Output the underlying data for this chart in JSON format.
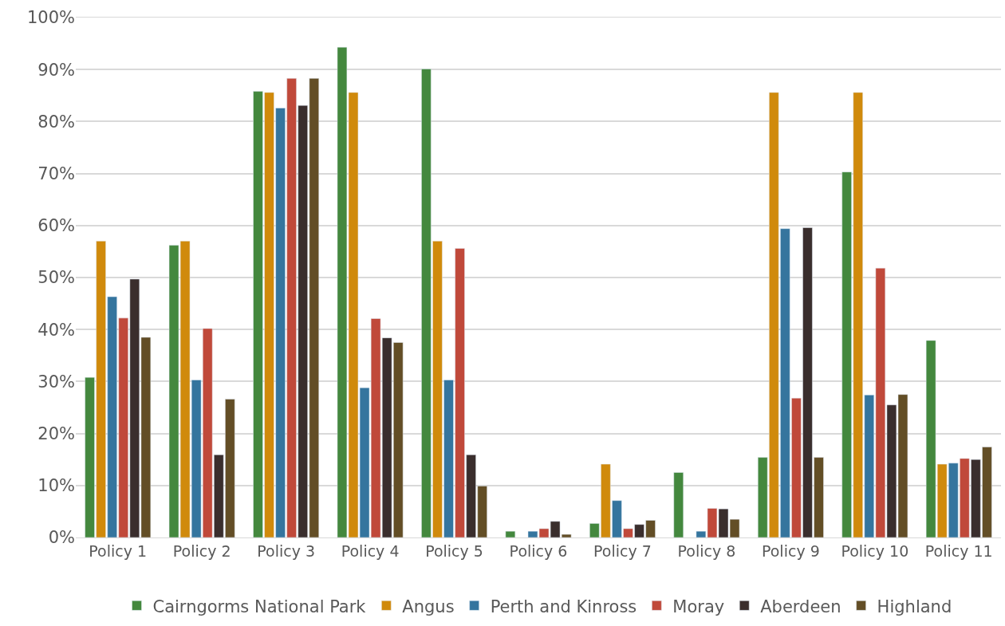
{
  "chart_data": {
    "type": "bar",
    "categories": [
      "Policy 1",
      "Policy 2",
      "Policy 3",
      "Policy 4",
      "Policy 5",
      "Policy 6",
      "Policy 7",
      "Policy 8",
      "Policy 9",
      "Policy 10",
      "Policy 11"
    ],
    "series": [
      {
        "name": "Cairngorms National Park",
        "color": "#44883e",
        "values": [
          30.8,
          56.2,
          85.8,
          94.3,
          90.1,
          1.2,
          2.7,
          12.5,
          15.4,
          70.3,
          37.9
        ]
      },
      {
        "name": "Angus",
        "color": "#d08a0c",
        "values": [
          57.0,
          57.0,
          85.6,
          85.6,
          57.0,
          null,
          14.1,
          null,
          85.6,
          85.6,
          14.1
        ]
      },
      {
        "name": "Perth and Kinross",
        "color": "#35759e",
        "values": [
          46.3,
          30.3,
          82.6,
          28.8,
          30.3,
          1.2,
          7.1,
          1.2,
          59.4,
          27.4,
          14.3
        ]
      },
      {
        "name": "Moray",
        "color": "#c0493a",
        "values": [
          42.2,
          40.2,
          88.3,
          42.1,
          55.6,
          1.7,
          1.7,
          5.6,
          26.8,
          51.8,
          15.2
        ]
      },
      {
        "name": "Aberdeen",
        "color": "#3a2e2d",
        "values": [
          49.7,
          15.9,
          83.1,
          38.4,
          15.9,
          3.1,
          2.5,
          5.5,
          59.6,
          25.5,
          15.0
        ]
      },
      {
        "name": "Highland",
        "color": "#634e26",
        "values": [
          38.5,
          26.6,
          88.3,
          37.5,
          9.9,
          0.6,
          3.3,
          3.5,
          15.4,
          27.5,
          17.4
        ]
      }
    ],
    "ylim": [
      0,
      100
    ],
    "yticks": [
      {
        "value": 0,
        "label": "0%"
      },
      {
        "value": 10,
        "label": "10%"
      },
      {
        "value": 20,
        "label": "20%"
      },
      {
        "value": 30,
        "label": "30%"
      },
      {
        "value": 40,
        "label": "40%"
      },
      {
        "value": 50,
        "label": "50%"
      },
      {
        "value": 60,
        "label": "60%"
      },
      {
        "value": 70,
        "label": "70%"
      },
      {
        "value": 80,
        "label": "80%"
      },
      {
        "value": 90,
        "label": "90%"
      },
      {
        "value": 100,
        "label": "100%"
      }
    ],
    "grid": "y",
    "legend": "bottom"
  }
}
